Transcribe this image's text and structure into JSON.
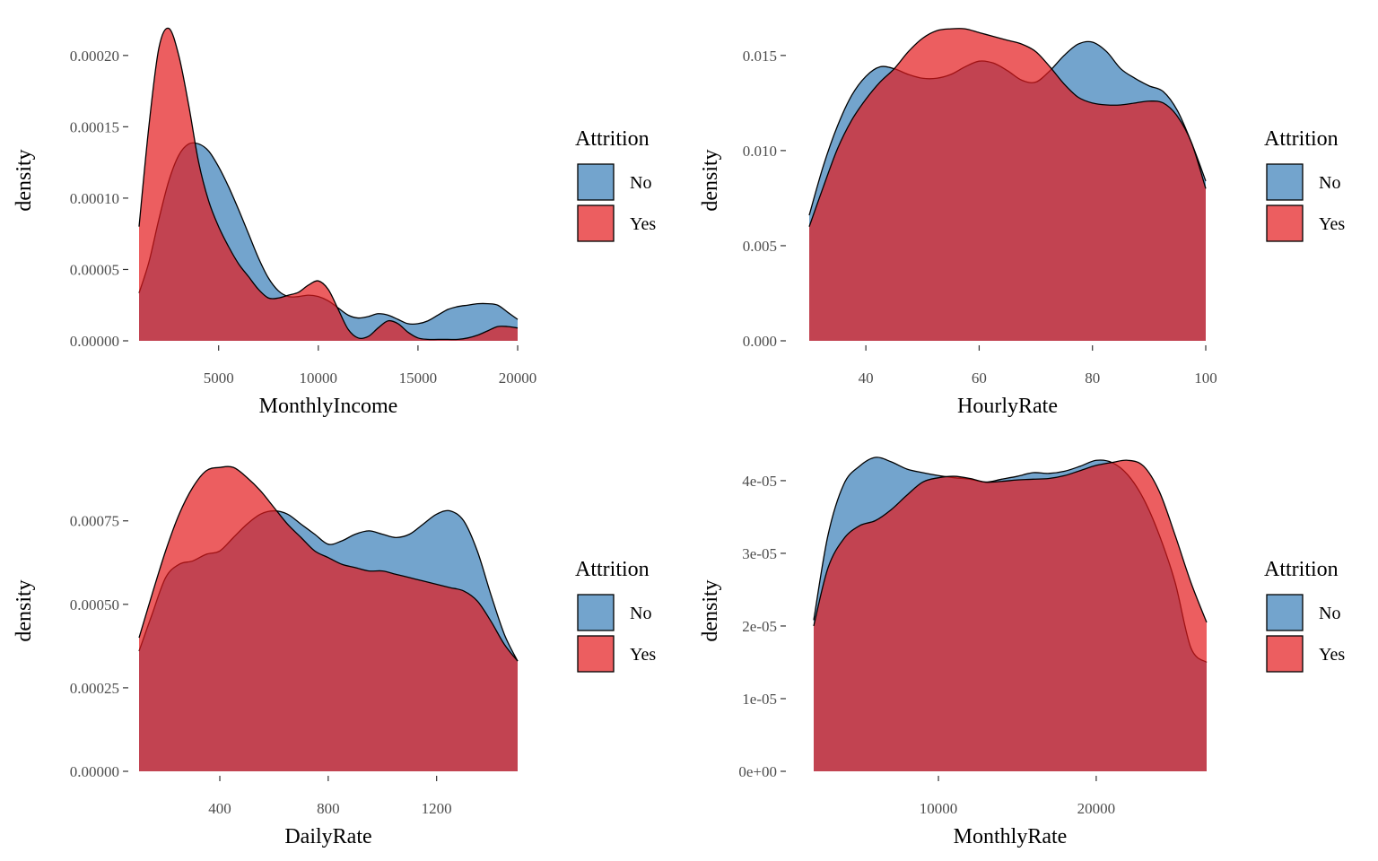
{
  "colors": {
    "No": "#377eb8",
    "Yes": "#e41a1c",
    "fill_opacity": 0.7,
    "outline": "#000000",
    "tick_text": "#4d4d4d"
  },
  "chart_data": [
    {
      "type": "area",
      "xlabel": "MonthlyIncome",
      "ylabel": "density",
      "xlim": [
        1009,
        19999
      ],
      "ylim": [
        0,
        0.00022
      ],
      "xticks": [
        5000,
        10000,
        15000,
        20000
      ],
      "xtick_labels": [
        "5000",
        "10000",
        "15000",
        "20000"
      ],
      "yticks": [
        0,
        5e-05,
        0.0001,
        0.00015,
        0.0002
      ],
      "ytick_labels": [
        "0.00000",
        "0.00005",
        "0.00010",
        "0.00015",
        "0.00020"
      ],
      "grid": false,
      "legend": {
        "title": "Attrition",
        "placement": "right",
        "entries": [
          "No",
          "Yes"
        ]
      },
      "series": [
        {
          "name": "No",
          "x": [
            1009,
            1500,
            2000,
            2500,
            3000,
            3500,
            4000,
            4500,
            5000,
            5500,
            6000,
            6500,
            7000,
            7500,
            8000,
            8500,
            9000,
            9500,
            10000,
            10500,
            11000,
            11500,
            12000,
            12500,
            13000,
            13500,
            14000,
            14500,
            15000,
            15500,
            16000,
            16500,
            17000,
            17500,
            18000,
            18500,
            19000,
            19500,
            19999
          ],
          "y": [
            3.35e-05,
            5.5e-05,
            8.5e-05,
            0.000112,
            0.00013,
            0.000138,
            0.000138,
            0.000133,
            0.000122,
            0.000108,
            9.2e-05,
            7.5e-05,
            5.8e-05,
            4.4e-05,
            3.5e-05,
            3.1e-05,
            3.1e-05,
            3.2e-05,
            3.1e-05,
            2.8e-05,
            2.3e-05,
            1.8e-05,
            1.6e-05,
            1.7e-05,
            1.9e-05,
            1.8e-05,
            1.5e-05,
            1.2e-05,
            1.2e-05,
            1.4e-05,
            1.8e-05,
            2.2e-05,
            2.4e-05,
            2.5e-05,
            2.6e-05,
            2.6e-05,
            2.5e-05,
            2e-05,
            1.5e-05
          ]
        },
        {
          "name": "Yes",
          "x": [
            1009,
            1500,
            2000,
            2500,
            3000,
            3500,
            4000,
            4500,
            5000,
            5500,
            6000,
            6500,
            7000,
            7500,
            8000,
            8500,
            9000,
            9500,
            10000,
            10500,
            11000,
            11500,
            12000,
            12500,
            13000,
            13500,
            14000,
            14500,
            15000,
            15500,
            16000,
            16500,
            17000,
            17500,
            18000,
            18500,
            19000,
            19500,
            19999
          ],
          "y": [
            8e-05,
            0.00015,
            0.000205,
            0.000219,
            0.0002,
            0.000165,
            0.000125,
            9.8e-05,
            8e-05,
            6.6e-05,
            5.4e-05,
            4.5e-05,
            3.6e-05,
            3e-05,
            3e-05,
            3.2e-05,
            3.4e-05,
            3.9e-05,
            4.2e-05,
            3.6e-05,
            2.2e-05,
            8e-06,
            2e-06,
            3e-06,
            9e-06,
            1.4e-05,
            1.2e-05,
            6e-06,
            2e-06,
            1e-06,
            1e-06,
            1e-06,
            1e-06,
            2e-06,
            4e-06,
            7e-06,
            1e-05,
            1e-05,
            9e-06
          ]
        }
      ]
    },
    {
      "type": "area",
      "xlabel": "HourlyRate",
      "ylabel": "density",
      "xlim": [
        30,
        100
      ],
      "ylim": [
        0,
        0.0165
      ],
      "xticks": [
        40,
        60,
        80,
        100
      ],
      "xtick_labels": [
        "40",
        "60",
        "80",
        "100"
      ],
      "yticks": [
        0,
        0.005,
        0.01,
        0.015
      ],
      "ytick_labels": [
        "0.000",
        "0.005",
        "0.010",
        "0.015"
      ],
      "grid": false,
      "legend": {
        "title": "Attrition",
        "placement": "right",
        "entries": [
          "No",
          "Yes"
        ]
      },
      "series": [
        {
          "name": "No",
          "x": [
            30,
            32.5,
            35,
            37.5,
            40,
            42.5,
            45,
            47.5,
            50,
            52.5,
            55,
            57.5,
            60,
            62.5,
            65,
            67.5,
            70,
            72.5,
            75,
            77.5,
            80,
            82.5,
            85,
            87.5,
            90,
            92.5,
            95,
            97.5,
            100
          ],
          "y": [
            0.0066,
            0.0092,
            0.0113,
            0.0129,
            0.0139,
            0.0144,
            0.0143,
            0.014,
            0.0138,
            0.0138,
            0.014,
            0.0144,
            0.0147,
            0.0146,
            0.0142,
            0.0137,
            0.0136,
            0.0142,
            0.015,
            0.0156,
            0.0157,
            0.0152,
            0.0143,
            0.0138,
            0.0134,
            0.0131,
            0.0121,
            0.0104,
            0.0084
          ]
        },
        {
          "name": "Yes",
          "x": [
            30,
            32.5,
            35,
            37.5,
            40,
            42.5,
            45,
            47.5,
            50,
            52.5,
            55,
            57.5,
            60,
            62.5,
            65,
            67.5,
            70,
            72.5,
            75,
            77.5,
            80,
            82.5,
            85,
            87.5,
            90,
            92.5,
            95,
            97.5,
            100
          ],
          "y": [
            0.006,
            0.0081,
            0.0101,
            0.0116,
            0.0127,
            0.0136,
            0.0143,
            0.0152,
            0.0159,
            0.0163,
            0.0164,
            0.0164,
            0.0162,
            0.016,
            0.0158,
            0.0156,
            0.0152,
            0.0144,
            0.0135,
            0.0128,
            0.0125,
            0.0124,
            0.0124,
            0.0125,
            0.0126,
            0.0125,
            0.0118,
            0.0104,
            0.008
          ]
        }
      ]
    },
    {
      "type": "area",
      "xlabel": "DailyRate",
      "ylabel": "density",
      "xlim": [
        102,
        1499
      ],
      "ylim": [
        0,
        0.00094
      ],
      "xticks": [
        400,
        800,
        1200
      ],
      "xtick_labels": [
        "400",
        "800",
        "1200"
      ],
      "yticks": [
        0,
        0.00025,
        0.0005,
        0.00075
      ],
      "ytick_labels": [
        "0.00000",
        "0.00025",
        "0.00050",
        "0.00075"
      ],
      "grid": false,
      "legend": {
        "title": "Attrition",
        "placement": "right",
        "entries": [
          "No",
          "Yes"
        ]
      },
      "series": [
        {
          "name": "No",
          "x": [
            102,
            150,
            200,
            250,
            300,
            350,
            400,
            450,
            500,
            550,
            600,
            650,
            700,
            750,
            800,
            850,
            900,
            950,
            1000,
            1050,
            1100,
            1150,
            1200,
            1250,
            1300,
            1350,
            1400,
            1450,
            1499
          ],
          "y": [
            0.00036,
            0.00047,
            0.00058,
            0.00062,
            0.00063,
            0.00065,
            0.00066,
            0.0007,
            0.00074,
            0.00077,
            0.00078,
            0.00077,
            0.00074,
            0.00071,
            0.00068,
            0.00069,
            0.00071,
            0.00072,
            0.00071,
            0.0007,
            0.00071,
            0.00074,
            0.00077,
            0.00078,
            0.00075,
            0.00066,
            0.00053,
            0.00041,
            0.00033
          ]
        },
        {
          "name": "Yes",
          "x": [
            102,
            150,
            200,
            250,
            300,
            350,
            400,
            450,
            500,
            550,
            600,
            650,
            700,
            750,
            800,
            850,
            900,
            950,
            1000,
            1050,
            1100,
            1150,
            1200,
            1250,
            1300,
            1350,
            1400,
            1450,
            1499
          ],
          "y": [
            0.0004,
            0.00053,
            0.00066,
            0.00077,
            0.00085,
            0.0009,
            0.00091,
            0.00091,
            0.00088,
            0.00084,
            0.00079,
            0.00074,
            0.0007,
            0.00066,
            0.00064,
            0.00062,
            0.00061,
            0.0006,
            0.0006,
            0.00059,
            0.00058,
            0.00057,
            0.00056,
            0.00055,
            0.00054,
            0.00051,
            0.00045,
            0.00038,
            0.00033
          ]
        }
      ]
    },
    {
      "type": "area",
      "xlabel": "MonthlyRate",
      "ylabel": "density",
      "xlim": [
        2094,
        26999
      ],
      "ylim": [
        0,
        4.32e-05
      ],
      "xticks": [
        10000,
        20000
      ],
      "xtick_labels": [
        "10000",
        "20000"
      ],
      "yticks": [
        0,
        1e-05,
        2e-05,
        3e-05,
        4e-05
      ],
      "ytick_labels": [
        "0e+00",
        "1e-05",
        "2e-05",
        "3e-05",
        "4e-05"
      ],
      "grid": false,
      "legend": {
        "title": "Attrition",
        "placement": "right",
        "entries": [
          "No",
          "Yes"
        ]
      },
      "series": [
        {
          "name": "No",
          "x": [
            2094,
            3000,
            4000,
            5000,
            6000,
            7000,
            8000,
            9000,
            10000,
            11000,
            12000,
            13000,
            14000,
            15000,
            16000,
            17000,
            18000,
            19000,
            20000,
            21000,
            22000,
            23000,
            24000,
            25000,
            26000,
            26999
          ],
          "y": [
            2.08e-05,
            3.25e-05,
            3.95e-05,
            4.2e-05,
            4.32e-05,
            4.26e-05,
            4.16e-05,
            4.11e-05,
            4.07e-05,
            4.04e-05,
            4.02e-05,
            3.98e-05,
            4.02e-05,
            4.06e-05,
            4.11e-05,
            4.1e-05,
            4.13e-05,
            4.2e-05,
            4.28e-05,
            4.25e-05,
            4.08e-05,
            3.75e-05,
            3.25e-05,
            2.6e-05,
            1.7e-05,
            1.5e-05
          ]
        },
        {
          "name": "Yes",
          "x": [
            2094,
            3000,
            4000,
            5000,
            6000,
            7000,
            8000,
            9000,
            10000,
            11000,
            12000,
            13000,
            14000,
            15000,
            16000,
            17000,
            18000,
            19000,
            20000,
            21000,
            22000,
            23000,
            24000,
            25000,
            26000,
            26999
          ],
          "y": [
            2e-05,
            2.8e-05,
            3.2e-05,
            3.38e-05,
            3.45e-05,
            3.6e-05,
            3.8e-05,
            3.98e-05,
            4.04e-05,
            4.06e-05,
            4.03e-05,
            3.98e-05,
            3.99e-05,
            4.01e-05,
            4.02e-05,
            4.03e-05,
            4.07e-05,
            4.14e-05,
            4.21e-05,
            4.25e-05,
            4.28e-05,
            4.2e-05,
            3.85e-05,
            3.25e-05,
            2.6e-05,
            2.05e-05
          ]
        }
      ]
    }
  ]
}
